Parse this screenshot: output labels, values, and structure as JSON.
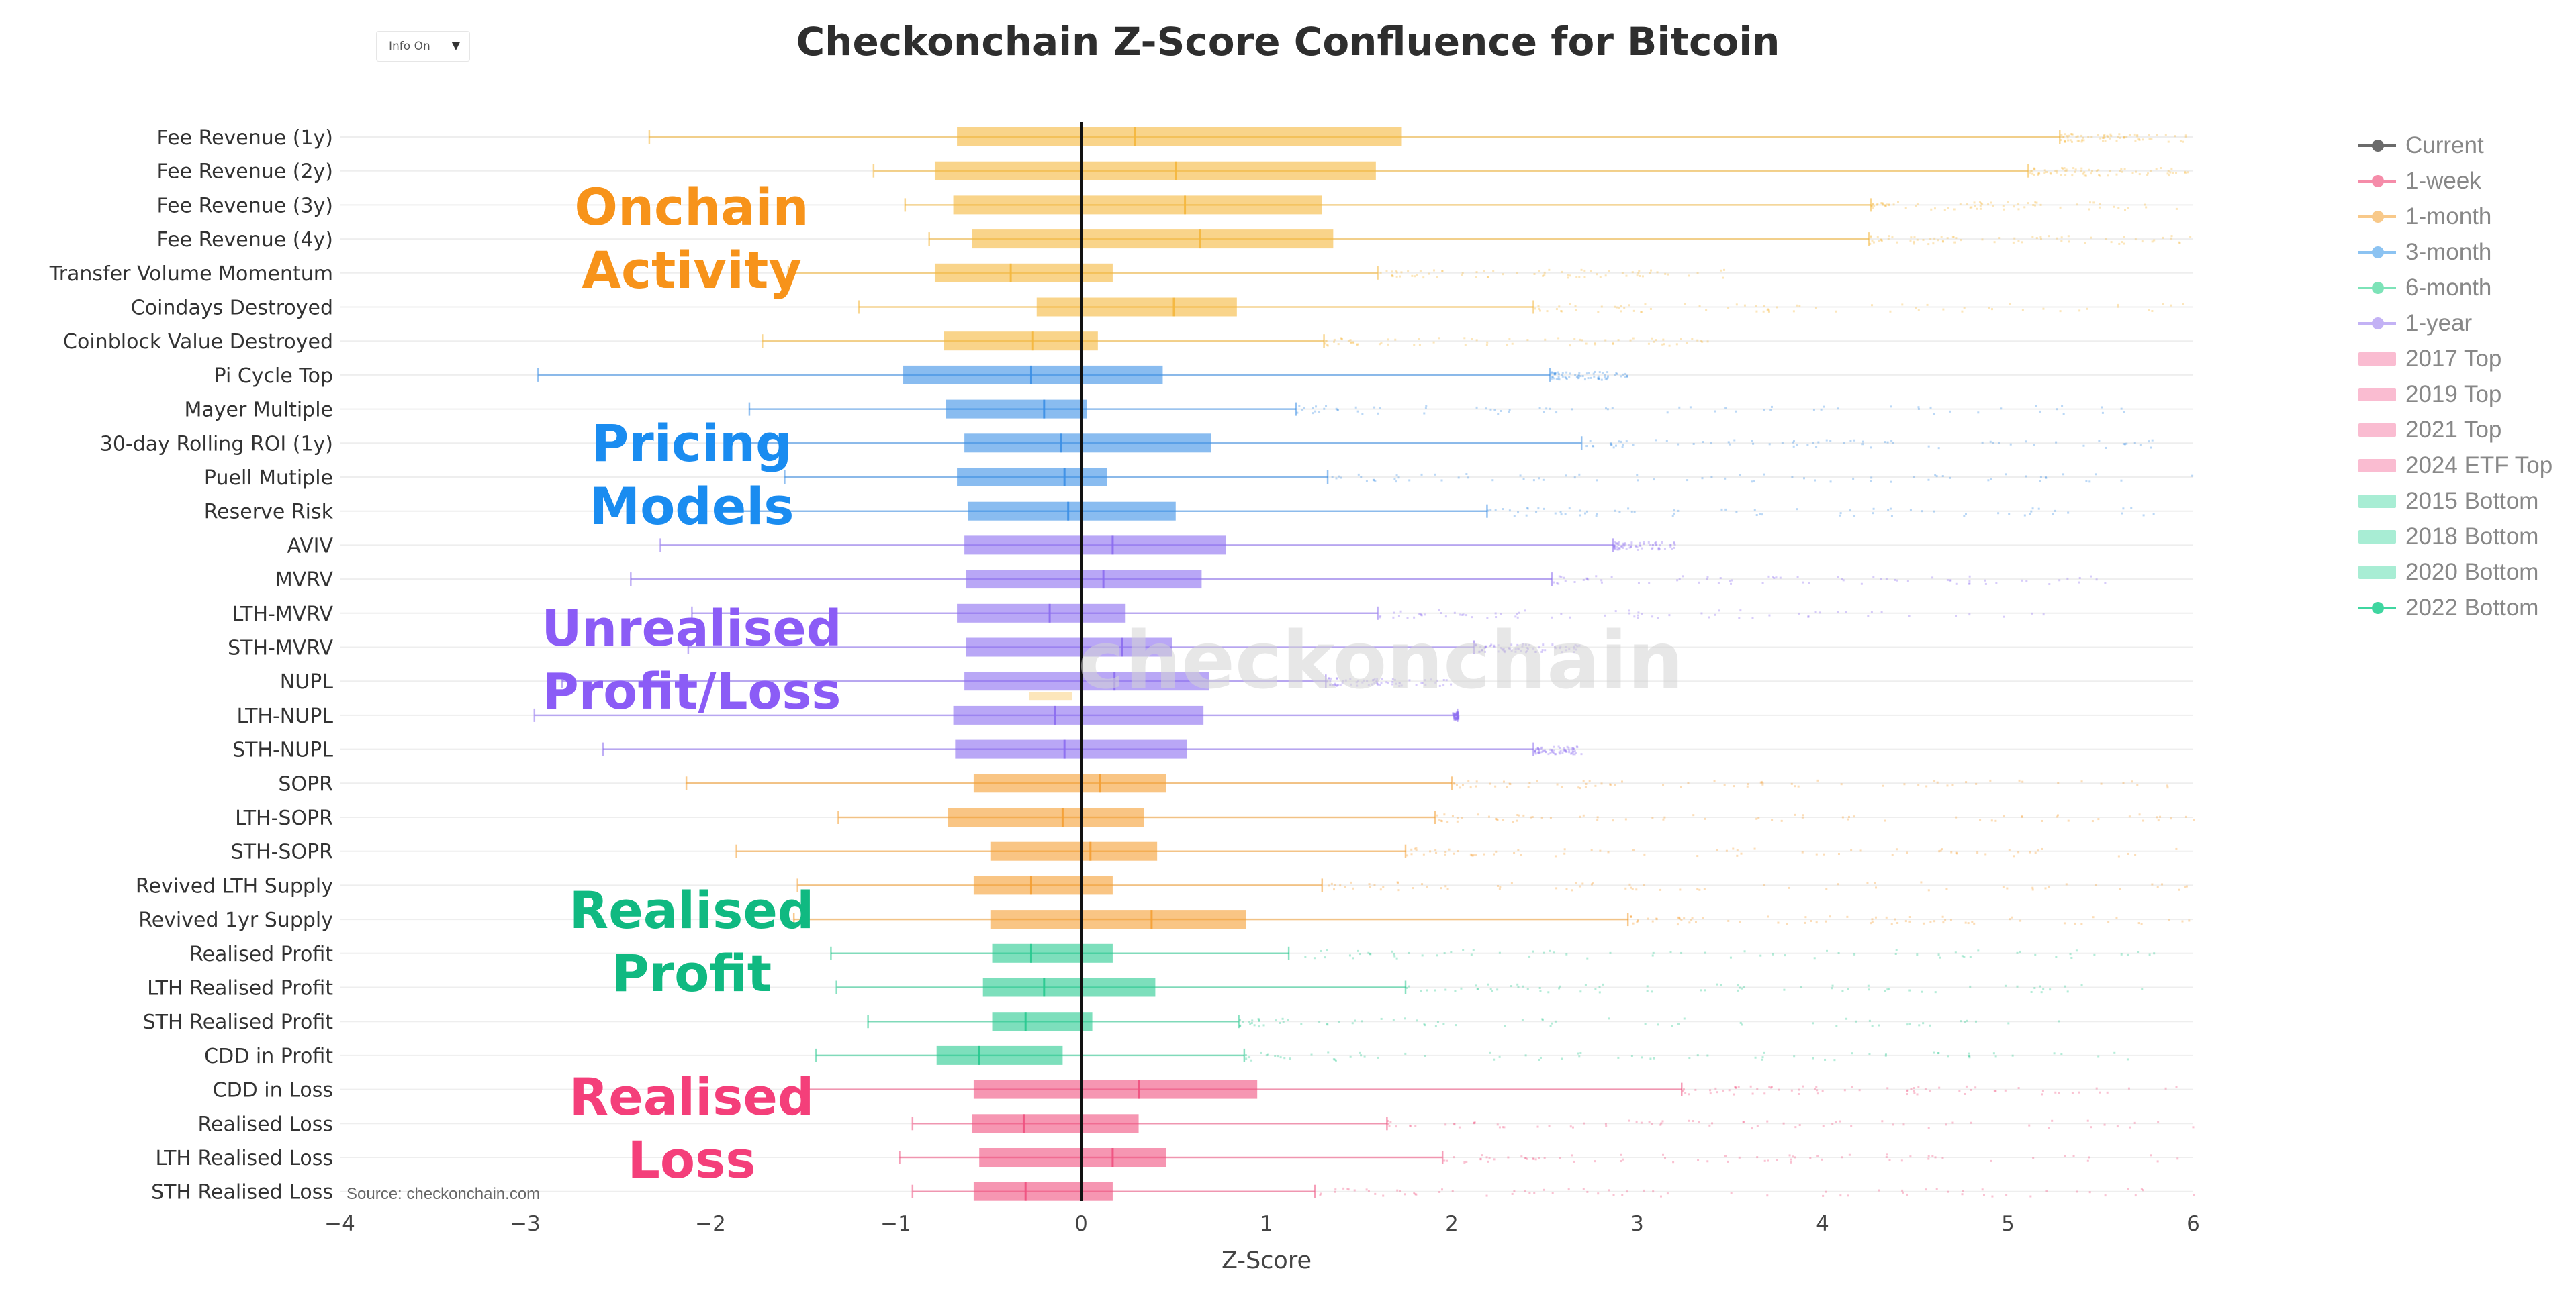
{
  "dropdown": {
    "label": "Info On"
  },
  "title": "Checkonchain Z-Score Confluence for Bitcoin",
  "watermark": "checkonchain",
  "source": "Source: checkonchain.com",
  "category_labels": [
    {
      "line1": "Onchain",
      "line2": "Activity",
      "color": "#f7931a"
    },
    {
      "line1": "Pricing",
      "line2": "Models",
      "color": "#1a8cf0"
    },
    {
      "line1": "Unrealised",
      "line2": "Profit/Loss",
      "color": "#8b5cf6"
    },
    {
      "line1": "Realised",
      "line2": "Profit",
      "color": "#10b981"
    },
    {
      "line1": "Realised",
      "line2": "Loss",
      "color": "#f43f7a"
    }
  ],
  "legend": [
    {
      "label": "Current",
      "kind": "line-dot",
      "color": "#6b6b6b"
    },
    {
      "label": "1-week",
      "kind": "line-dot",
      "color": "#f58ca9"
    },
    {
      "label": "1-month",
      "kind": "line-dot",
      "color": "#f8c98a"
    },
    {
      "label": "3-month",
      "kind": "line-dot",
      "color": "#8cc3f2"
    },
    {
      "label": "6-month",
      "kind": "line-dot",
      "color": "#7de3b8"
    },
    {
      "label": "1-year",
      "kind": "line-dot",
      "color": "#c3b2f5"
    },
    {
      "label": "2017 Top",
      "kind": "bar",
      "color": "#f46a99"
    },
    {
      "label": "2019 Top",
      "kind": "bar",
      "color": "#f46a99"
    },
    {
      "label": "2021 Top",
      "kind": "bar",
      "color": "#f46a99"
    },
    {
      "label": "2024 ETF Top",
      "kind": "bar",
      "color": "#f46a99"
    },
    {
      "label": "2015 Bottom",
      "kind": "bar",
      "color": "#3fd6a0"
    },
    {
      "label": "2018 Bottom",
      "kind": "bar",
      "color": "#3fd6a0"
    },
    {
      "label": "2020 Bottom",
      "kind": "bar",
      "color": "#3fd6a0"
    },
    {
      "label": "2022 Bottom",
      "kind": "line-dot",
      "color": "#3fd6a0"
    }
  ],
  "colors": {
    "onchain": "#f5b73c",
    "pricing": "#3b8fe6",
    "unrealised": "#8b6cf0",
    "realised_orange": "#f59f32",
    "realised_profit": "#27c98f",
    "realised_loss": "#f0507f",
    "current_line": "#111111"
  },
  "chart_data": {
    "type": "box",
    "title": "Checkonchain Z-Score Confluence for Bitcoin",
    "xlabel": "Z-Score",
    "xlim": [
      -4,
      6
    ],
    "x_ticks": [
      "−4",
      "−3",
      "−2",
      "−1",
      "0",
      "1",
      "2",
      "3",
      "4",
      "5",
      "6"
    ],
    "current_value": 0,
    "series": [
      {
        "name": "Fee Revenue (1y)",
        "group": "onchain",
        "q1": -0.67,
        "median": 0.29,
        "q3": 1.73,
        "wlow": -2.33,
        "whigh": 5.28,
        "tail": 6.0
      },
      {
        "name": "Fee Revenue (2y)",
        "group": "onchain",
        "q1": -0.79,
        "median": 0.51,
        "q3": 1.59,
        "wlow": -1.12,
        "whigh": 5.11,
        "tail": 6.0
      },
      {
        "name": "Fee Revenue (3y)",
        "group": "onchain",
        "q1": -0.69,
        "median": 0.56,
        "q3": 1.3,
        "wlow": -0.95,
        "whigh": 4.26,
        "tail": 6.0
      },
      {
        "name": "Fee Revenue (4y)",
        "group": "onchain",
        "q1": -0.59,
        "median": 0.64,
        "q3": 1.36,
        "wlow": -0.82,
        "whigh": 4.25,
        "tail": 6.0
      },
      {
        "name": "Transfer Volume Momentum",
        "group": "onchain",
        "q1": -0.79,
        "median": -0.38,
        "q3": 0.17,
        "wlow": -1.58,
        "whigh": 1.6,
        "tail": 3.52
      },
      {
        "name": "Coindays Destroyed",
        "group": "onchain",
        "q1": -0.24,
        "median": 0.5,
        "q3": 0.84,
        "wlow": -1.2,
        "whigh": 2.44,
        "tail": 6.0
      },
      {
        "name": "Coinblock Value Destroyed",
        "group": "onchain",
        "q1": -0.74,
        "median": -0.26,
        "q3": 0.09,
        "wlow": -1.72,
        "whigh": 1.31,
        "tail": 3.4
      },
      {
        "name": "Pi Cycle Top",
        "group": "pricing",
        "q1": -0.96,
        "median": -0.27,
        "q3": 0.44,
        "wlow": -2.93,
        "whigh": 2.53,
        "tail": 2.95
      },
      {
        "name": "Mayer Multiple",
        "group": "pricing",
        "q1": -0.73,
        "median": -0.2,
        "q3": 0.03,
        "wlow": -1.79,
        "whigh": 1.16,
        "tail": 5.7
      },
      {
        "name": "30-day Rolling ROI (1y)",
        "group": "pricing",
        "q1": -0.63,
        "median": -0.11,
        "q3": 0.7,
        "wlow": -1.82,
        "whigh": 2.7,
        "tail": 5.8
      },
      {
        "name": "Puell Mutiple",
        "group": "pricing",
        "q1": -0.67,
        "median": -0.09,
        "q3": 0.14,
        "wlow": -1.6,
        "whigh": 1.33,
        "tail": 6.0
      },
      {
        "name": "Reserve Risk",
        "group": "pricing",
        "q1": -0.61,
        "median": -0.07,
        "q3": 0.51,
        "wlow": -1.96,
        "whigh": 2.19,
        "tail": 6.0
      },
      {
        "name": "AVIV",
        "group": "unrealised",
        "q1": -0.63,
        "median": 0.17,
        "q3": 0.78,
        "wlow": -2.27,
        "whigh": 2.87,
        "tail": 3.2
      },
      {
        "name": "MVRV",
        "group": "unrealised",
        "q1": -0.62,
        "median": 0.12,
        "q3": 0.65,
        "wlow": -2.43,
        "whigh": 2.54,
        "tail": 5.6
      },
      {
        "name": "LTH-MVRV",
        "group": "unrealised",
        "q1": -0.67,
        "median": -0.17,
        "q3": 0.24,
        "wlow": -2.1,
        "whigh": 1.6,
        "tail": 5.2
      },
      {
        "name": "STH-MVRV",
        "group": "unrealised",
        "q1": -0.62,
        "median": 0.22,
        "q3": 0.49,
        "wlow": -2.12,
        "whigh": 2.12,
        "tail": 2.7
      },
      {
        "name": "NUPL",
        "group": "unrealised",
        "q1": -0.63,
        "median": 0.18,
        "q3": 0.69,
        "wlow": -2.8,
        "whigh": 1.32,
        "tail": 2.0
      },
      {
        "name": "LTH-NUPL",
        "group": "unrealised",
        "q1": -0.69,
        "median": -0.14,
        "q3": 0.66,
        "wlow": -2.95,
        "whigh": 2.03,
        "tail": 2.0
      },
      {
        "name": "STH-NUPL",
        "group": "unrealised",
        "q1": -0.68,
        "median": -0.09,
        "q3": 0.57,
        "wlow": -2.58,
        "whigh": 2.44,
        "tail": 2.7
      },
      {
        "name": "SOPR",
        "group": "realised_orange",
        "q1": -0.58,
        "median": 0.1,
        "q3": 0.46,
        "wlow": -2.13,
        "whigh": 2.0,
        "tail": 6.0
      },
      {
        "name": "LTH-SOPR",
        "group": "realised_orange",
        "q1": -0.72,
        "median": -0.1,
        "q3": 0.34,
        "wlow": -1.31,
        "whigh": 1.91,
        "tail": 6.0
      },
      {
        "name": "STH-SOPR",
        "group": "realised_orange",
        "q1": -0.49,
        "median": 0.05,
        "q3": 0.41,
        "wlow": -1.86,
        "whigh": 1.75,
        "tail": 6.0
      },
      {
        "name": "Revived LTH Supply",
        "group": "realised_orange",
        "q1": -0.58,
        "median": -0.27,
        "q3": 0.17,
        "wlow": -1.53,
        "whigh": 1.3,
        "tail": 6.0
      },
      {
        "name": "Revived 1yr Supply",
        "group": "realised_orange",
        "q1": -0.49,
        "median": 0.38,
        "q3": 0.89,
        "wlow": -1.55,
        "whigh": 2.95,
        "tail": 6.0
      },
      {
        "name": "Realised Profit",
        "group": "realised_profit",
        "q1": -0.48,
        "median": -0.27,
        "q3": 0.17,
        "wlow": -1.35,
        "whigh": 1.12,
        "tail": 5.8
      },
      {
        "name": "LTH Realised Profit",
        "group": "realised_profit",
        "q1": -0.53,
        "median": -0.2,
        "q3": 0.4,
        "wlow": -1.32,
        "whigh": 1.75,
        "tail": 5.8
      },
      {
        "name": "STH Realised Profit",
        "group": "realised_profit",
        "q1": -0.48,
        "median": -0.3,
        "q3": 0.06,
        "wlow": -1.15,
        "whigh": 0.85,
        "tail": 5.7
      },
      {
        "name": "CDD in Profit",
        "group": "realised_profit",
        "q1": -0.78,
        "median": -0.55,
        "q3": -0.1,
        "wlow": -1.43,
        "whigh": 0.88,
        "tail": 5.7
      },
      {
        "name": "CDD in Loss",
        "group": "realised_loss",
        "q1": -0.58,
        "median": 0.31,
        "q3": 0.95,
        "wlow": -1.5,
        "whigh": 3.24,
        "tail": 6.0
      },
      {
        "name": "Realised Loss",
        "group": "realised_loss",
        "q1": -0.59,
        "median": -0.31,
        "q3": 0.31,
        "wlow": -0.91,
        "whigh": 1.65,
        "tail": 6.0
      },
      {
        "name": "LTH Realised Loss",
        "group": "realised_loss",
        "q1": -0.55,
        "median": 0.17,
        "q3": 0.46,
        "wlow": -0.98,
        "whigh": 1.95,
        "tail": 6.0
      },
      {
        "name": "STH Realised Loss",
        "group": "realised_loss",
        "q1": -0.58,
        "median": -0.3,
        "q3": 0.17,
        "wlow": -0.91,
        "whigh": 1.26,
        "tail": 6.0
      }
    ],
    "extra_marks": [
      {
        "row": "NUPL",
        "kind": "faint-box",
        "from": -0.28,
        "to": -0.05,
        "color": "#f5b73c"
      }
    ],
    "grid": true,
    "legend_position": "right"
  }
}
